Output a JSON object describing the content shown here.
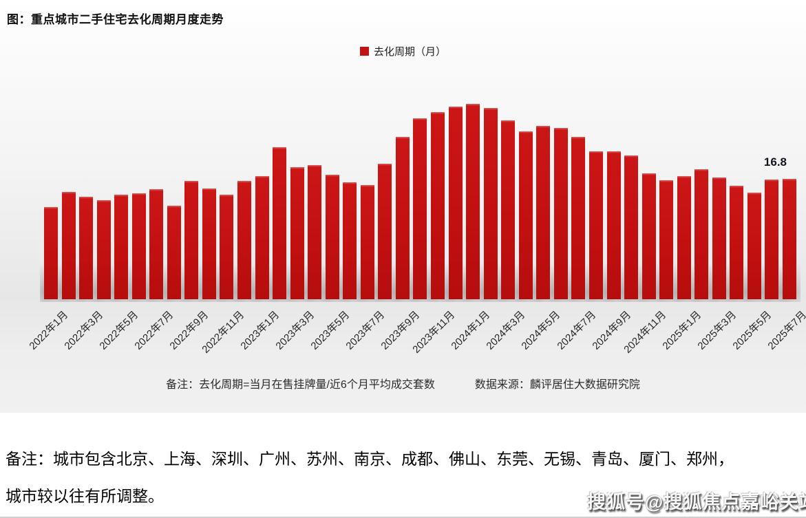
{
  "page": {
    "title": "图：重点城市二手住宅去化周期月度走势",
    "footnote_definition": "备注：去化周期=当月在售挂牌量/近6个月平均成交套数",
    "footnote_source": "数据来源：麟评居住大数据研究院",
    "notes_line1": "备注：城市包含北京、上海、深圳、广州、苏州、南京、成都、佛山、东莞、无锡、青岛、厦门、郑州，",
    "notes_line2": "城市较以往有所调整。",
    "watermark": "搜狐号@搜狐焦点嘉峪关站"
  },
  "chart_data": {
    "type": "bar",
    "title": "图：重点城市二手住宅去化周期月度走势",
    "legend": "去化周期（月）",
    "legend_position": "top-center",
    "bar_color": "#c31212",
    "grid": false,
    "ylim": [
      0,
      29
    ],
    "x_tick_every": 2,
    "categories": [
      "2022年1月",
      "2022年2月",
      "2022年3月",
      "2022年4月",
      "2022年5月",
      "2022年6月",
      "2022年7月",
      "2022年8月",
      "2022年9月",
      "2022年10月",
      "2022年11月",
      "2022年12月",
      "2023年1月",
      "2023年2月",
      "2023年3月",
      "2023年4月",
      "2023年5月",
      "2023年6月",
      "2023年7月",
      "2023年8月",
      "2023年9月",
      "2023年10月",
      "2023年11月",
      "2023年12月",
      "2024年1月",
      "2024年2月",
      "2024年3月",
      "2024年4月",
      "2024年5月",
      "2024年6月",
      "2024年7月",
      "2024年8月",
      "2024年9月",
      "2024年10月",
      "2024年11月",
      "2024年12月",
      "2025年1月",
      "2025年2月",
      "2025年3月",
      "2025年4月",
      "2025年5月",
      "2025年6月",
      "2025年7月"
    ],
    "values": [
      12.9,
      15.0,
      14.3,
      13.8,
      14.6,
      14.8,
      15.4,
      13.1,
      16.5,
      15.5,
      14.6,
      16.5,
      17.2,
      21.2,
      18.4,
      18.7,
      17.4,
      16.3,
      15.9,
      18.9,
      22.7,
      25.2,
      26.1,
      26.9,
      27.3,
      26.7,
      25.0,
      23.4,
      24.2,
      23.9,
      22.7,
      20.6,
      20.6,
      20.1,
      17.6,
      16.6,
      17.2,
      18.1,
      17.0,
      15.8,
      14.9,
      16.7,
      16.8
    ],
    "data_label": {
      "index": 42,
      "text": "16.8"
    }
  }
}
